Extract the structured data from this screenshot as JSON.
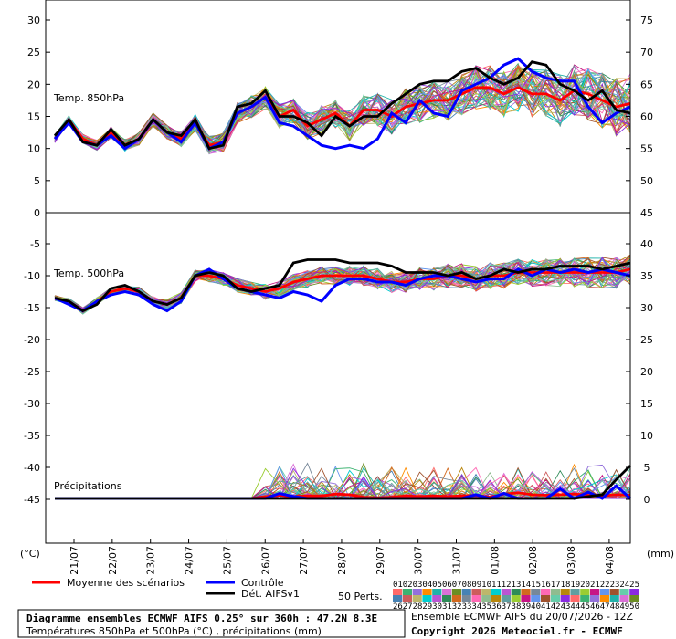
{
  "chart_data": [
    {
      "type": "line",
      "panel_label": "Temp. 850hPa",
      "left_axis_ticks": [
        "30",
        "25",
        "20",
        "15",
        "10",
        "5",
        "0"
      ],
      "right_axis_ticks": [
        "75",
        "70",
        "65",
        "60",
        "55",
        "50",
        "45"
      ],
      "ylim": [
        0,
        32
      ],
      "series": [
        {
          "name": "Moyenne des scénarios",
          "values": [
            11.5,
            14.5,
            11.5,
            10.5,
            12.5,
            10.5,
            11.5,
            14.5,
            12.5,
            11.5,
            14,
            10.5,
            11,
            15.5,
            16.5,
            18,
            15,
            16,
            13.5,
            14.5,
            15.5,
            13.5,
            16,
            16,
            15,
            16.5,
            17,
            17.5,
            17.5,
            18.5,
            19.5,
            19.5,
            18.5,
            19.5,
            18.5,
            18.5,
            17.5,
            19,
            18.5,
            17.5,
            16.5,
            17
          ]
        },
        {
          "name": "Contrôle",
          "values": [
            11.5,
            14,
            11,
            10.5,
            12,
            10,
            11.5,
            14.5,
            12.5,
            11,
            14,
            10,
            11,
            15.5,
            16.5,
            18,
            14,
            13.5,
            12,
            10.5,
            10,
            10.5,
            10,
            11.5,
            15.5,
            14,
            17.5,
            15.5,
            15,
            19,
            20,
            21,
            23,
            24,
            22,
            21,
            20.5,
            20.5,
            16.5,
            14,
            15.5,
            16.5
          ]
        },
        {
          "name": "Dét. AIFSv1",
          "values": [
            12,
            14.5,
            11,
            10.5,
            13,
            10.5,
            11.5,
            14.5,
            12.5,
            12,
            14.5,
            10,
            10.5,
            16.5,
            17,
            19,
            15,
            15,
            14,
            12,
            15,
            13.5,
            15,
            15,
            17,
            18.5,
            20,
            20.5,
            20.5,
            22,
            22.5,
            21,
            20,
            21,
            23.5,
            23,
            20,
            19,
            17.5,
            19,
            16,
            15.5
          ]
        }
      ]
    },
    {
      "type": "line",
      "panel_label": "Temp. 500hPa",
      "left_axis_ticks": [
        "-5",
        "-10",
        "-15",
        "-20",
        "-25",
        "-30",
        "-35",
        "-40",
        "-45"
      ],
      "right_axis_ticks": [
        "40",
        "35",
        "30",
        "25",
        "20",
        "15",
        "10",
        "5",
        "0"
      ],
      "ylim": [
        -48,
        -2
      ],
      "series": [
        {
          "name": "Moyenne des scénarios",
          "values": [
            -13.5,
            -14,
            -15.5,
            -14,
            -12.5,
            -12,
            -12.5,
            -14,
            -14.5,
            -13.5,
            -10,
            -10,
            -10.5,
            -11.5,
            -12,
            -12.5,
            -12,
            -11,
            -10.5,
            -10,
            -10,
            -10,
            -10,
            -10.5,
            -11,
            -11,
            -10.5,
            -10.5,
            -10,
            -10,
            -10.5,
            -10,
            -10,
            -9.5,
            -9.5,
            -9.5,
            -9.5,
            -9.5,
            -9.5,
            -9.5,
            -9.5,
            -9
          ]
        },
        {
          "name": "Contrôle",
          "values": [
            -13.5,
            -14.5,
            -15.5,
            -14,
            -13,
            -12.5,
            -13,
            -14.5,
            -15.5,
            -14,
            -10,
            -9,
            -10.5,
            -12,
            -12.5,
            -13,
            -13.5,
            -12.5,
            -13,
            -14,
            -11.5,
            -10.5,
            -10.5,
            -11,
            -11,
            -11.5,
            -10.5,
            -10,
            -10,
            -10.5,
            -11,
            -10.5,
            -10.5,
            -9,
            -10,
            -9,
            -9.5,
            -9,
            -9.5,
            -9,
            -9.5,
            -10
          ]
        },
        {
          "name": "Dét. AIFSv1",
          "values": [
            -13.5,
            -14,
            -15.5,
            -14.5,
            -12,
            -11.5,
            -12.5,
            -14,
            -14.5,
            -13.5,
            -10,
            -9.5,
            -10,
            -12,
            -12.5,
            -12,
            -11.5,
            -8,
            -7.5,
            -7.5,
            -7.5,
            -8,
            -8,
            -8,
            -8.5,
            -9.5,
            -9.5,
            -9.5,
            -10,
            -9.5,
            -10.5,
            -10,
            -9,
            -9.5,
            -9,
            -9,
            -8.5,
            -8.5,
            -8.5,
            -9,
            -8.5,
            -8
          ]
        }
      ]
    },
    {
      "type": "line",
      "panel_label": "Précipitations",
      "units": "(mm)",
      "series": [
        {
          "name": "Moyenne des scénarios",
          "values": [
            0,
            0,
            0,
            0,
            0,
            0,
            0,
            0,
            0,
            0,
            0,
            0,
            0,
            0,
            0,
            0.3,
            0.5,
            0.3,
            0.4,
            0.4,
            0.7,
            0.6,
            0.2,
            0.1,
            0.2,
            0.4,
            0.3,
            0.4,
            0.3,
            0.4,
            0.5,
            0.2,
            0.7,
            0.9,
            0.6,
            0.5,
            0.6,
            0.7,
            0.5,
            0.4,
            0.6,
            0.5
          ]
        },
        {
          "name": "Contrôle",
          "values": [
            0,
            0,
            0,
            0,
            0,
            0,
            0,
            0,
            0,
            0,
            0,
            0,
            0,
            0,
            0,
            0,
            0.8,
            0.3,
            0,
            0,
            0,
            0,
            0,
            0,
            0,
            0,
            0,
            0,
            0,
            0,
            0.6,
            0,
            0.8,
            0,
            0,
            0,
            1.5,
            0,
            1,
            0,
            2,
            0
          ]
        },
        {
          "name": "Dét. AIFSv1",
          "values": [
            0,
            0,
            0,
            0,
            0,
            0,
            0,
            0,
            0,
            0,
            0,
            0,
            0,
            0,
            0,
            0,
            0,
            0,
            0,
            0,
            0,
            0,
            0,
            0,
            0,
            0,
            0,
            0,
            0,
            0,
            0,
            0,
            0,
            0,
            0,
            0,
            0,
            0,
            0.3,
            0.6,
            3,
            5.2
          ]
        }
      ]
    }
  ],
  "x_labels": [
    "21/07",
    "22/07",
    "23/07",
    "24/07",
    "25/07",
    "26/07",
    "27/07",
    "28/07",
    "29/07",
    "30/07",
    "31/07",
    "01/08",
    "02/08",
    "03/08",
    "04/08"
  ],
  "left_unit": "(°C)",
  "right_unit": "(mm)",
  "legend": {
    "mean": "Moyenne des scénarios",
    "control": "Contrôle",
    "det": "Dét. AIFSv1",
    "perts": "50 Perts.",
    "top_numbers": [
      "01",
      "02",
      "03",
      "04",
      "05",
      "06",
      "07",
      "08",
      "09",
      "10",
      "11",
      "12",
      "13",
      "14",
      "15",
      "16",
      "17",
      "18",
      "19",
      "20",
      "21",
      "22",
      "23",
      "24",
      "25"
    ],
    "bottom_numbers": [
      "26",
      "27",
      "28",
      "29",
      "30",
      "31",
      "32",
      "33",
      "34",
      "35",
      "36",
      "37",
      "38",
      "39",
      "40",
      "41",
      "42",
      "43",
      "44",
      "45",
      "46",
      "47",
      "48",
      "49",
      "50"
    ]
  },
  "colors": {
    "mean": "#ff0000",
    "control": "#0000ff",
    "det": "#000000"
  },
  "footer": {
    "title": "Diagramme ensembles ECMWF AIFS 0.25° sur 360h : 47.2N 8.3E",
    "subtitle": "Températures 850hPa et 500hPa (°C) , précipitations (mm)",
    "run": "Ensemble ECMWF AIFS du 20/07/2026 - 12Z",
    "copyright": "Copyright 2026 Meteociel.fr - ECMWF"
  }
}
